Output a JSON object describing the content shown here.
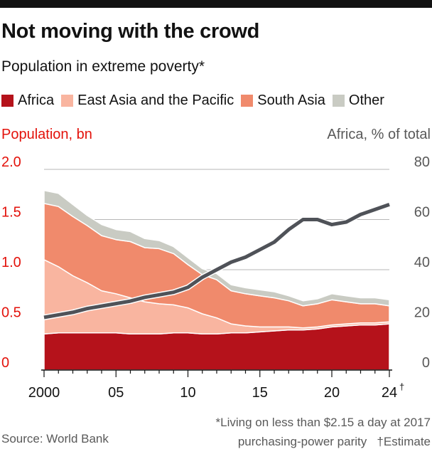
{
  "header": {
    "title": "Not moving with the crowd",
    "subtitle": "Population in extreme poverty*"
  },
  "legend": [
    {
      "label": "Africa",
      "color": "#b5121b"
    },
    {
      "label": "East Asia and the Pacific",
      "color": "#f9b5a0"
    },
    {
      "label": "South Asia",
      "color": "#f08a6c"
    },
    {
      "label": "Other",
      "color": "#c9cbc3"
    }
  ],
  "footnote": {
    "line1": "*Living on less than $2.15 a day at 2017",
    "line2": "purchasing-power parity",
    "line3": "†Estimate"
  },
  "source": "Source: World Bank",
  "chart_data": {
    "type": "area",
    "ylabel": "Population, bn",
    "y2label": "Africa, % of total",
    "ylim": [
      0,
      2.0
    ],
    "y2lim": [
      0,
      80
    ],
    "yticks": [
      "0",
      "0.5",
      "1.0",
      "1.5",
      "2.0"
    ],
    "y2ticks": [
      "0",
      "20",
      "40",
      "60",
      "80"
    ],
    "xticks": [
      {
        "year": 2000,
        "label": "2000"
      },
      {
        "year": 2005,
        "label": "05"
      },
      {
        "year": 2010,
        "label": "10"
      },
      {
        "year": 2015,
        "label": "15"
      },
      {
        "year": 2020,
        "label": "20"
      },
      {
        "year": 2024,
        "label": "24",
        "sup": "†"
      }
    ],
    "x": [
      2000,
      2001,
      2002,
      2003,
      2004,
      2005,
      2006,
      2007,
      2008,
      2009,
      2010,
      2011,
      2012,
      2013,
      2014,
      2015,
      2016,
      2017,
      2018,
      2019,
      2020,
      2021,
      2022,
      2023,
      2024
    ],
    "series": [
      {
        "name": "Africa",
        "color": "#b5121b",
        "values": [
          0.36,
          0.37,
          0.37,
          0.37,
          0.37,
          0.37,
          0.36,
          0.36,
          0.36,
          0.37,
          0.37,
          0.36,
          0.36,
          0.37,
          0.37,
          0.38,
          0.39,
          0.4,
          0.4,
          0.41,
          0.43,
          0.44,
          0.45,
          0.45,
          0.46
        ]
      },
      {
        "name": "East Asia and the Pacific",
        "color": "#f9b5a0",
        "values": [
          0.74,
          0.66,
          0.57,
          0.5,
          0.42,
          0.39,
          0.36,
          0.32,
          0.3,
          0.28,
          0.25,
          0.2,
          0.16,
          0.09,
          0.07,
          0.05,
          0.04,
          0.03,
          0.02,
          0.02,
          0.02,
          0.02,
          0.02,
          0.02,
          0.02
        ]
      },
      {
        "name": "South Asia",
        "color": "#f08a6c",
        "values": [
          0.56,
          0.6,
          0.59,
          0.57,
          0.55,
          0.54,
          0.56,
          0.54,
          0.55,
          0.51,
          0.43,
          0.39,
          0.38,
          0.33,
          0.32,
          0.31,
          0.29,
          0.26,
          0.22,
          0.23,
          0.25,
          0.22,
          0.19,
          0.19,
          0.16
        ]
      },
      {
        "name": "Other",
        "color": "#c9cbc3",
        "values": [
          0.13,
          0.13,
          0.12,
          0.1,
          0.11,
          0.1,
          0.1,
          0.09,
          0.08,
          0.07,
          0.07,
          0.06,
          0.06,
          0.06,
          0.06,
          0.06,
          0.06,
          0.05,
          0.05,
          0.05,
          0.06,
          0.06,
          0.06,
          0.06,
          0.06
        ]
      }
    ],
    "line": {
      "name": "Africa, % of total",
      "color": "#4f5258",
      "axis": "right",
      "values": [
        21,
        22,
        23,
        24.5,
        25.5,
        26.5,
        27.5,
        29,
        30,
        31,
        33,
        37,
        40,
        43,
        45,
        48,
        51,
        56,
        60,
        60,
        58,
        59,
        62,
        64,
        66
      ]
    }
  }
}
